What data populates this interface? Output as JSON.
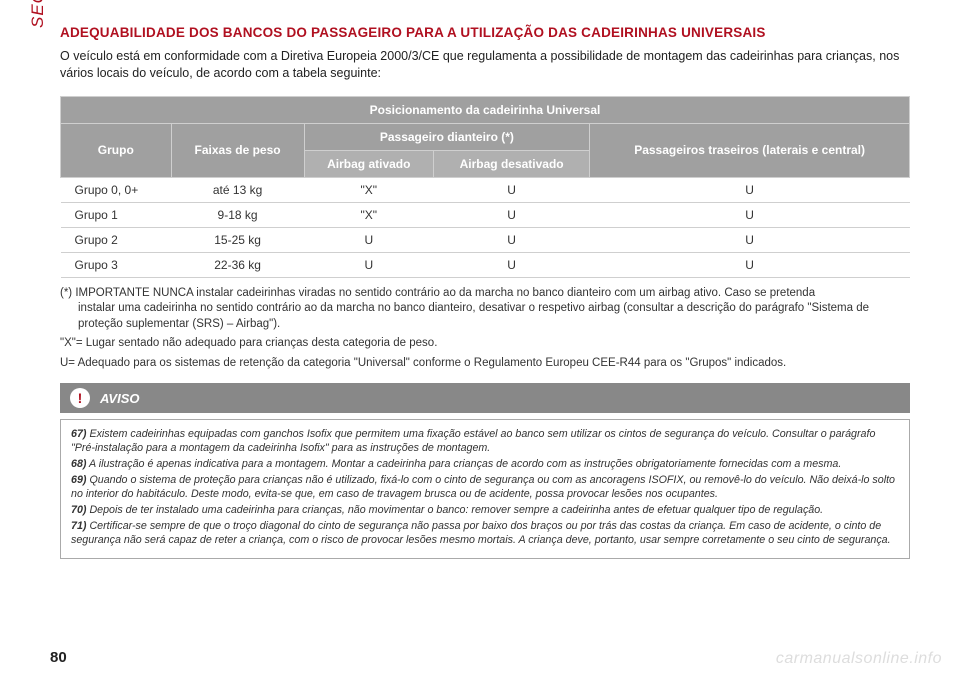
{
  "tab": "SEGURANÇA",
  "heading": "ADEQUABILIDADE DOS BANCOS DO PASSAGEIRO PARA A UTILIZAÇÃO DAS CADEIRINHAS UNIVERSAIS",
  "intro": "O veículo está em conformidade com a Diretiva Europeia 2000/3/CE que regulamenta a possibilidade de montagem das cadeirinhas para crianças, nos vários locais do veículo, de acordo com a tabela seguinte:",
  "table": {
    "title": "Posicionamento da cadeirinha Universal",
    "headers": {
      "grupo": "Grupo",
      "faixas": "Faixas de peso",
      "dianteiro": "Passageiro dianteiro (*)",
      "ativado": "Airbag ativado",
      "desativado": "Airbag desativado",
      "traseiros": "Passageiros traseiros (laterais e central)"
    },
    "rows": [
      {
        "grupo": "Grupo 0, 0+",
        "peso": "até 13 kg",
        "ativ": "\"X\"",
        "desat": "U",
        "tras": "U"
      },
      {
        "grupo": "Grupo 1",
        "peso": "9-18 kg",
        "ativ": "\"X\"",
        "desat": "U",
        "tras": "U"
      },
      {
        "grupo": "Grupo 2",
        "peso": "15-25 kg",
        "ativ": "U",
        "desat": "U",
        "tras": "U"
      },
      {
        "grupo": "Grupo 3",
        "peso": "22-36 kg",
        "ativ": "U",
        "desat": "U",
        "tras": "U"
      }
    ]
  },
  "footnotes": {
    "star_a": "(*) IMPORTANTE NUNCA instalar cadeirinhas viradas no sentido contrário ao da marcha no banco dianteiro com um airbag ativo. Caso se pretenda",
    "star_b": "instalar uma cadeirinha no sentido contrário ao da marcha no banco dianteiro, desativar o respetivo airbag (consultar a descrição do parágrafo \"Sistema de proteção suplementar (SRS) – Airbag\").",
    "x": "\"X\"= Lugar sentado não adequado para crianças desta categoria de peso.",
    "u": "U= Adequado para os sistemas de retenção da categoria \"Universal\" conforme o Regulamento Europeu CEE-R44 para os \"Grupos\" indicados."
  },
  "aviso": {
    "title": "AVISO",
    "items": [
      {
        "n": "67)",
        "t": "Existem cadeirinhas equipadas com ganchos Isofix que permitem uma fixação estável ao banco sem utilizar os cintos de segurança do veículo. Consultar o parágrafo \"Pré-instalação para a montagem da cadeirinha Isofix\" para as instruções de montagem."
      },
      {
        "n": "68)",
        "t": "A ilustração é apenas indicativa para a montagem. Montar a cadeirinha para crianças de acordo com as instruções obrigatoriamente fornecidas com a mesma."
      },
      {
        "n": "69)",
        "t": "Quando o sistema de proteção para crianças não é utilizado, fixá-lo com o cinto de segurança ou com as ancoragens ISOFIX, ou removê-lo do veículo. Não deixá-lo solto no interior do habitáculo. Deste modo, evita-se que, em caso de travagem brusca ou de acidente, possa provocar lesões nos ocupantes."
      },
      {
        "n": "70)",
        "t": "Depois de ter instalado uma cadeirinha para crianças, não movimentar o banco: remover sempre a cadeirinha antes de efetuar qualquer tipo de regulação."
      },
      {
        "n": "71)",
        "t": "Certificar-se sempre de que o troço diagonal do cinto de segurança não passa por baixo dos braços ou por trás das costas da criança. Em caso de acidente, o cinto de segurança não será capaz de reter a criança, com o risco de provocar lesões mesmo mortais. A criança deve, portanto, usar sempre corretamente o seu cinto de segurança."
      }
    ]
  },
  "pagenum": "80",
  "watermark": "carmanualsonline.info"
}
